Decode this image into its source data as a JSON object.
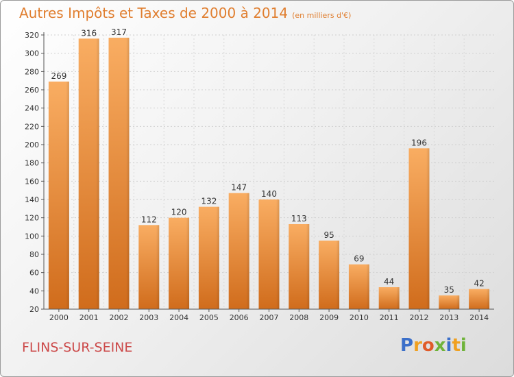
{
  "title": "Autres Impôts et Taxes de 2000 à 2014",
  "subtitle": "(en milliers d'€)",
  "commune": "FLINS-SUR-SEINE",
  "logo": "Proxiti",
  "colors": {
    "bar_light": "#f7a85a",
    "bar_dark": "#d8721f",
    "title": "#e07e2f",
    "commune": "#cc4a4a"
  },
  "chart_data": {
    "type": "bar",
    "categories": [
      "2000",
      "2001",
      "2002",
      "2003",
      "2004",
      "2005",
      "2006",
      "2007",
      "2008",
      "2009",
      "2010",
      "2011",
      "2012",
      "2013",
      "2014"
    ],
    "values": [
      269,
      316,
      317,
      112,
      120,
      132,
      147,
      140,
      113,
      95,
      69,
      44,
      196,
      35,
      42
    ],
    "title": "Autres Impôts et Taxes de 2000 à 2014",
    "subtitle": "(en milliers d'€)",
    "ylim": [
      20,
      320
    ],
    "yticks": [
      20,
      40,
      60,
      80,
      100,
      120,
      140,
      160,
      180,
      200,
      220,
      240,
      260,
      280,
      300,
      320
    ],
    "grid": true
  }
}
